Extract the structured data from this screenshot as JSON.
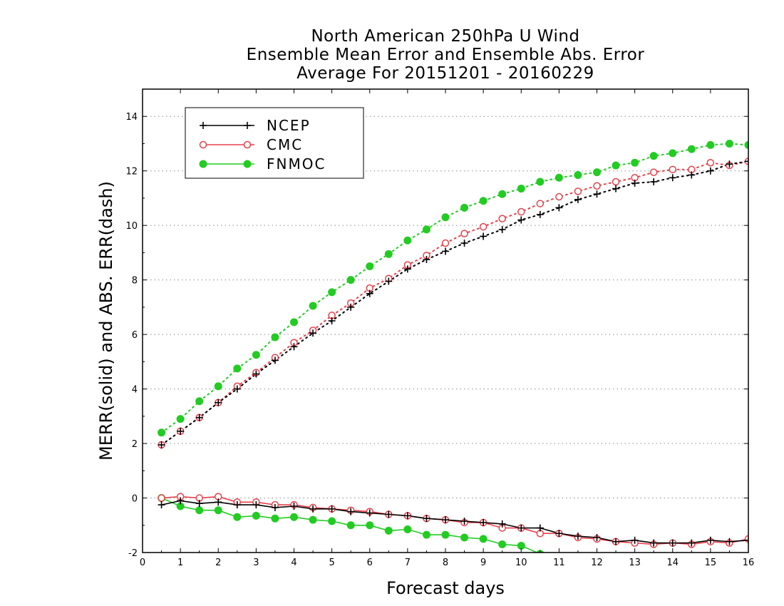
{
  "chart_data": {
    "type": "line",
    "title_lines": [
      "North American 250hPa U Wind",
      "Ensemble Mean Error and Ensemble Abs. Error",
      "Average For 20151201 - 20160229"
    ],
    "xlabel": "Forecast days",
    "ylabel": "MERR(solid) and ABS. ERR(dash)",
    "xlim": [
      0,
      16
    ],
    "ylim": [
      -2,
      15
    ],
    "xticks": [
      0,
      1,
      2,
      3,
      4,
      5,
      6,
      7,
      8,
      9,
      10,
      11,
      12,
      13,
      14,
      15,
      16
    ],
    "yticks": [
      -2,
      0,
      2,
      4,
      6,
      8,
      10,
      12,
      14
    ],
    "grid": "horizontal dotted",
    "legend_position": "top-left",
    "x": [
      0.5,
      1,
      1.5,
      2,
      2.5,
      3,
      3.5,
      4,
      4.5,
      5,
      5.5,
      6,
      6.5,
      7,
      7.5,
      8,
      8.5,
      9,
      9.5,
      10,
      10.5,
      11,
      11.5,
      12,
      12.5,
      13,
      13.5,
      14,
      14.5,
      15,
      15.5,
      16
    ],
    "series": [
      {
        "name": "NCEP",
        "color": "#000000",
        "marker": "plus",
        "abs_err": [
          1.95,
          2.45,
          2.95,
          3.5,
          4.0,
          4.55,
          5.05,
          5.55,
          6.05,
          6.5,
          7.0,
          7.5,
          7.95,
          8.4,
          8.75,
          9.05,
          9.35,
          9.6,
          9.85,
          10.2,
          10.4,
          10.65,
          10.95,
          11.15,
          11.35,
          11.55,
          11.6,
          11.75,
          11.85,
          12.0,
          12.25,
          12.35
        ],
        "mean_err": [
          -0.25,
          -0.1,
          -0.2,
          -0.15,
          -0.25,
          -0.25,
          -0.35,
          -0.3,
          -0.4,
          -0.4,
          -0.5,
          -0.55,
          -0.6,
          -0.65,
          -0.75,
          -0.8,
          -0.85,
          -0.9,
          -0.95,
          -1.1,
          -1.1,
          -1.3,
          -1.4,
          -1.45,
          -1.6,
          -1.55,
          -1.65,
          -1.65,
          -1.65,
          -1.55,
          -1.6,
          -1.55
        ]
      },
      {
        "name": "CMC",
        "color": "#e8404a",
        "marker": "open-circle",
        "abs_err": [
          1.95,
          2.45,
          2.95,
          3.5,
          4.1,
          4.6,
          5.15,
          5.7,
          6.15,
          6.7,
          7.15,
          7.7,
          8.05,
          8.55,
          8.9,
          9.35,
          9.7,
          9.95,
          10.25,
          10.5,
          10.8,
          11.05,
          11.25,
          11.45,
          11.6,
          11.75,
          11.95,
          12.05,
          12.05,
          12.3,
          12.2,
          12.35
        ],
        "mean_err": [
          0.0,
          0.05,
          0.0,
          0.05,
          -0.15,
          -0.15,
          -0.25,
          -0.25,
          -0.35,
          -0.4,
          -0.45,
          -0.5,
          -0.6,
          -0.65,
          -0.75,
          -0.8,
          -0.9,
          -0.9,
          -1.1,
          -1.1,
          -1.3,
          -1.3,
          -1.45,
          -1.5,
          -1.6,
          -1.65,
          -1.7,
          -1.65,
          -1.7,
          -1.6,
          -1.65,
          -1.5
        ]
      },
      {
        "name": "FNMOC",
        "color": "#22cc22",
        "marker": "filled-circle",
        "abs_err": [
          2.4,
          2.9,
          3.55,
          4.1,
          4.75,
          5.25,
          5.9,
          6.45,
          7.05,
          7.55,
          8.0,
          8.5,
          8.95,
          9.45,
          9.85,
          10.3,
          10.65,
          10.9,
          11.15,
          11.35,
          11.6,
          11.75,
          11.85,
          11.95,
          12.2,
          12.3,
          12.55,
          12.65,
          12.8,
          12.95,
          13.0,
          12.95
        ],
        "mean_err": [
          0.0,
          -0.3,
          -0.45,
          -0.45,
          -0.7,
          -0.65,
          -0.75,
          -0.7,
          -0.8,
          -0.85,
          -1.0,
          -1.0,
          -1.2,
          -1.15,
          -1.35,
          -1.35,
          -1.45,
          -1.5,
          -1.7,
          -1.75,
          -2.05,
          null,
          null,
          null,
          null,
          null,
          null,
          null,
          null,
          null,
          null,
          null
        ]
      }
    ]
  }
}
